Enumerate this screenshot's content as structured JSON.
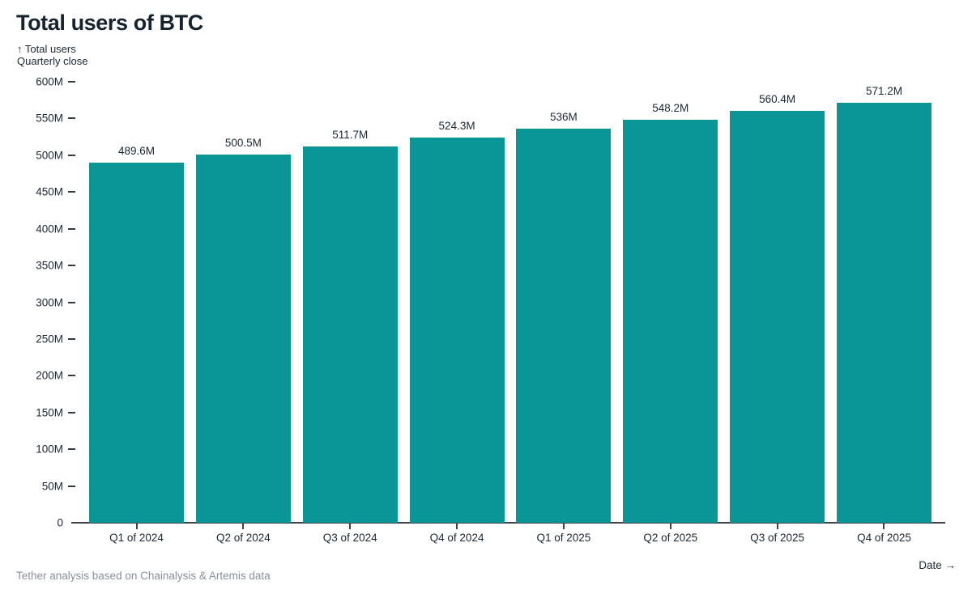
{
  "footer": {
    "source": "Tether analysis based on Chainalysis & Artemis data"
  },
  "colors": {
    "bar": "#0a9696",
    "text_dark": "#1b2733",
    "title": "#16222e",
    "axis": "#3f4349",
    "muted": "#8a9099"
  },
  "chart_data": {
    "type": "bar",
    "title": "Total users of BTC",
    "y_axis_label": "↑ Total users",
    "subtitle": "Quarterly close",
    "x_axis_label": "Date →",
    "categories": [
      "Q1 of 2024",
      "Q2 of 2024",
      "Q3 of 2024",
      "Q4 of 2024",
      "Q1 of 2025",
      "Q2 of 2025",
      "Q3 of 2025",
      "Q4 of 2025"
    ],
    "values": [
      489.6,
      500.5,
      511.7,
      524.3,
      536,
      548.2,
      560.4,
      571.2
    ],
    "value_labels": [
      "489.6M",
      "500.5M",
      "511.7M",
      "524.3M",
      "536M",
      "548.2M",
      "560.4M",
      "571.2M"
    ],
    "unit_suffix": "M",
    "ylim": [
      0,
      600
    ],
    "y_tick_step": 50,
    "y_ticks": [
      "600M",
      "550M",
      "500M",
      "450M",
      "400M",
      "350M",
      "300M",
      "250M",
      "200M",
      "150M",
      "100M",
      "50M",
      "0"
    ],
    "grid": false,
    "legend": "none",
    "bar_color": "#0a9696"
  }
}
